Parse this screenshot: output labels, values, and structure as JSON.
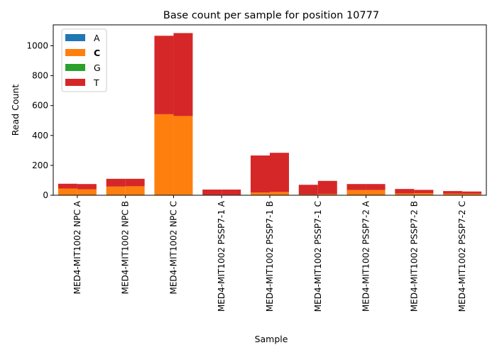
{
  "chart_data": {
    "type": "bar",
    "stacked": true,
    "title": "Base count per sample for position 10777",
    "xlabel": "Sample",
    "ylabel": "Read Count",
    "ylim": [
      0,
      1140
    ],
    "yticks": [
      0,
      200,
      400,
      600,
      800,
      1000
    ],
    "grid": false,
    "legend_position": "top-left",
    "legend_bold": [
      "C"
    ],
    "categories": [
      "MED4-MIT1002 NPC A",
      "MED4-MIT1002 NPC B",
      "MED4-MIT1002 NPC C",
      "MED4-MIT1002 PSSP7-1 A",
      "MED4-MIT1002 PSSP7-1 B",
      "MED4-MIT1002 PSSP7-1 C",
      "MED4-MIT1002 PSSP7-2 A",
      "MED4-MIT1002 PSSP7-2 B",
      "MED4-MIT1002 PSSP7-2 C"
    ],
    "replicate_bars_per_category": 2,
    "series": [
      {
        "name": "A",
        "color": "#1f77b4",
        "values": [
          [
            0,
            0
          ],
          [
            0,
            0
          ],
          [
            2,
            3
          ],
          [
            0,
            0
          ],
          [
            0,
            0
          ],
          [
            0,
            0
          ],
          [
            0,
            0
          ],
          [
            0,
            0
          ],
          [
            0,
            0
          ]
        ]
      },
      {
        "name": "C",
        "color": "#ff7f0e",
        "values": [
          [
            45,
            40
          ],
          [
            58,
            60
          ],
          [
            540,
            527
          ],
          [
            3,
            3
          ],
          [
            18,
            22
          ],
          [
            5,
            8
          ],
          [
            35,
            35
          ],
          [
            12,
            14
          ],
          [
            10,
            10
          ]
        ]
      },
      {
        "name": "G",
        "color": "#2ca02c",
        "values": [
          [
            0,
            0
          ],
          [
            0,
            0
          ],
          [
            0,
            0
          ],
          [
            0,
            0
          ],
          [
            0,
            0
          ],
          [
            0,
            0
          ],
          [
            0,
            0
          ],
          [
            0,
            0
          ],
          [
            0,
            0
          ]
        ]
      },
      {
        "name": "T",
        "color": "#d62728",
        "values": [
          [
            32,
            35
          ],
          [
            52,
            50
          ],
          [
            525,
            555
          ],
          [
            35,
            35
          ],
          [
            248,
            262
          ],
          [
            65,
            88
          ],
          [
            40,
            40
          ],
          [
            30,
            22
          ],
          [
            18,
            15
          ]
        ]
      }
    ]
  }
}
